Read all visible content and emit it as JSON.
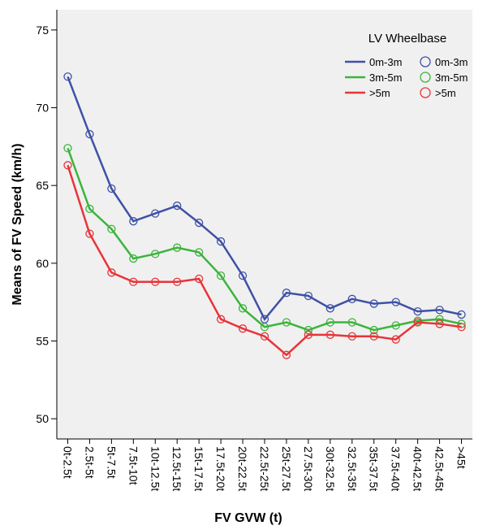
{
  "chart_data": {
    "type": "line",
    "x_label": "FV GVW (t)",
    "y_label": "Means of FV Speed (km/h)",
    "legend_title": "LV Wheelbase",
    "legend_position": "upper right",
    "categories": [
      "0t-2.5t",
      "2.5t-5t",
      "5t-7.5t",
      "7.5t-10t",
      "10t-12.5t",
      "12.5t-15t",
      "15t-17.5t",
      "17.5t-20t",
      "20t-22.5t",
      "22.5t-25t",
      "25t-27.5t",
      "27.5t-30t",
      "30t-32.5t",
      "32.5t-35t",
      "35t-37.5t",
      "37.5t-40t",
      "40t-42.5t",
      "42.5t-45t",
      ">45t"
    ],
    "series": [
      {
        "name": "0m-3m",
        "color": "#3f51a6",
        "values": [
          72.0,
          68.3,
          64.8,
          62.7,
          63.2,
          63.7,
          62.6,
          61.4,
          59.2,
          56.4,
          58.1,
          57.9,
          57.1,
          57.7,
          57.4,
          57.5,
          56.9,
          57.0,
          56.7
        ]
      },
      {
        "name": "3m-5m",
        "color": "#3cb43c",
        "values": [
          67.4,
          63.5,
          62.2,
          60.3,
          60.6,
          61.0,
          60.7,
          59.2,
          57.1,
          55.9,
          56.2,
          55.7,
          56.2,
          56.2,
          55.7,
          56.0,
          56.3,
          56.4,
          56.1
        ]
      },
      {
        "name": ">5m",
        "color": "#e8343a",
        "values": [
          66.3,
          61.9,
          59.4,
          58.8,
          58.8,
          58.8,
          59.0,
          56.4,
          55.8,
          55.3,
          54.1,
          55.4,
          55.4,
          55.3,
          55.3,
          55.1,
          56.2,
          56.1,
          55.9
        ]
      }
    ],
    "ylim": [
      48.7,
      76.3
    ],
    "yticks": [
      50,
      55,
      60,
      65,
      70,
      75
    ]
  }
}
